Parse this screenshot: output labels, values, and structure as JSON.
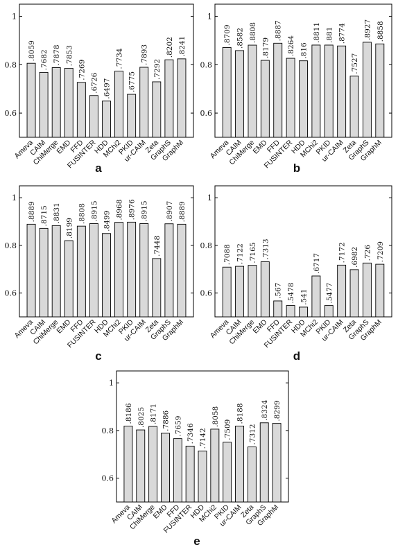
{
  "chart_data": [
    {
      "type": "bar",
      "panel_label": "a",
      "categories": [
        "Ameva",
        "CAIM",
        "ChiMerge",
        "EMD",
        "FFD",
        "FUSINTER",
        "HDD",
        "MChi2",
        "PKID",
        "ur-CAIM",
        "Zeta",
        "GraphS",
        "GraphM"
      ],
      "values": [
        0.8059,
        0.7682,
        0.7878,
        0.7853,
        0.7269,
        0.6726,
        0.6497,
        0.7734,
        0.6775,
        0.7893,
        0.7292,
        0.8202,
        0.8241
      ],
      "value_labels": [
        ".8059",
        ".7682",
        ".7878",
        ".7853",
        ".7269",
        ".6726",
        ".6497",
        ".7734",
        ".6775",
        ".7893",
        ".7292",
        ".8202",
        ".8241"
      ],
      "y_ticks": [
        "0.6",
        "0.8",
        "1"
      ],
      "ylim": [
        0.5,
        1.05
      ],
      "grid": false
    },
    {
      "type": "bar",
      "panel_label": "b",
      "categories": [
        "Ameva",
        "CAIM",
        "ChiMerge",
        "EMD",
        "FFD",
        "FUSINTER",
        "HDD",
        "MChi2",
        "PKID",
        "ur-CAIM",
        "Zeta",
        "GraphS",
        "GraphM"
      ],
      "values": [
        0.8709,
        0.8582,
        0.8808,
        0.8179,
        0.8887,
        0.8264,
        0.816,
        0.8811,
        0.881,
        0.8774,
        0.7527,
        0.8927,
        0.8858
      ],
      "value_labels": [
        ".8709",
        ".8582",
        ".8808",
        ".8179",
        ".8887",
        ".8264",
        ".816",
        ".8811",
        ".881",
        ".8774",
        ".7527",
        ".8927",
        ".8858"
      ],
      "y_ticks": [
        "0.6",
        "0.8",
        "1"
      ],
      "ylim": [
        0.5,
        1.05
      ],
      "grid": false
    },
    {
      "type": "bar",
      "panel_label": "c",
      "categories": [
        "Ameva",
        "CAIM",
        "ChiMerge",
        "EMD",
        "FFD",
        "FUSINTER",
        "HDD",
        "MChi2",
        "PKID",
        "ur-CAIM",
        "Zeta",
        "GraphS",
        "GraphM"
      ],
      "values": [
        0.8889,
        0.8715,
        0.8831,
        0.8199,
        0.8808,
        0.8915,
        0.8499,
        0.8968,
        0.8976,
        0.8915,
        0.7448,
        0.8907,
        0.8889
      ],
      "value_labels": [
        ".8889",
        ".8715",
        ".8831",
        ".8199",
        ".8808",
        ".8915",
        ".8499",
        ".8968",
        ".8976",
        ".8915",
        ".7448",
        ".8907",
        ".8889"
      ],
      "y_ticks": [
        "0.6",
        "0.8",
        "1"
      ],
      "ylim": [
        0.5,
        1.05
      ],
      "grid": false
    },
    {
      "type": "bar",
      "panel_label": "d",
      "categories": [
        "Ameva",
        "CAIM",
        "ChiMerge",
        "EMD",
        "FFD",
        "FUSINTER",
        "HDD",
        "MChi2",
        "PKID",
        "ur-CAIM",
        "Zeta",
        "GraphS",
        "GraphM"
      ],
      "values": [
        0.7088,
        0.7122,
        0.7165,
        0.7313,
        0.567,
        0.5478,
        0.541,
        0.6717,
        0.5477,
        0.7172,
        0.6982,
        0.726,
        0.7209
      ],
      "value_labels": [
        ".7088",
        ".7122",
        ".7165",
        ".7313",
        ".567",
        ".5478",
        ".541",
        ".6717",
        ".5477",
        ".7172",
        ".6982",
        ".726",
        ".7209"
      ],
      "y_ticks": [
        "0.6",
        "0.8",
        "1"
      ],
      "ylim": [
        0.5,
        1.05
      ],
      "grid": false
    },
    {
      "type": "bar",
      "panel_label": "e",
      "categories": [
        "Ameva",
        "CAIM",
        "ChiMerge",
        "EMD",
        "FFD",
        "FUSINTER",
        "HDD",
        "MChi2",
        "PKID",
        "ur-CAIM",
        "Zeta",
        "GraphS",
        "GraphM"
      ],
      "values": [
        0.8186,
        0.8025,
        0.8171,
        0.7886,
        0.7659,
        0.7346,
        0.7142,
        0.8058,
        0.7509,
        0.8188,
        0.7312,
        0.8324,
        0.8299
      ],
      "value_labels": [
        ".8186",
        ".8025",
        ".8171",
        ".7886",
        ".7659",
        ".7346",
        ".7142",
        ".8058",
        ".7509",
        ".8188",
        ".7312",
        ".8324",
        ".8299"
      ],
      "y_ticks": [
        "0.6",
        "0.8",
        "1"
      ],
      "ylim": [
        0.5,
        1.05
      ],
      "grid": false
    }
  ],
  "colors": {
    "bar_fill": "#d9d9d9",
    "bar_stroke": "#000000",
    "axis": "#000000",
    "text": "#111111"
  }
}
